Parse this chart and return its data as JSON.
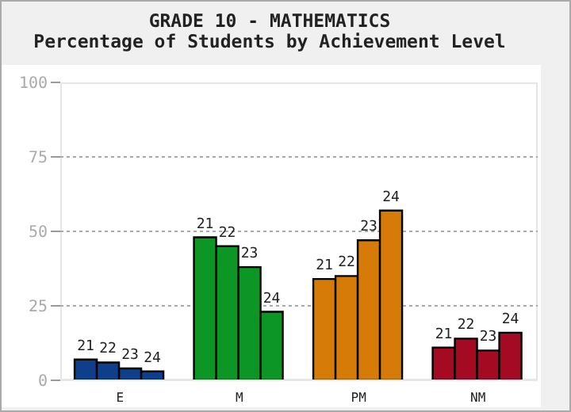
{
  "chart_data": {
    "type": "bar",
    "title": "GRADE 10 - MATHEMATICS",
    "subtitle": "Percentage of Students by Achievement Level",
    "categories": [
      "E",
      "M",
      "PM",
      "NM"
    ],
    "series": [
      {
        "name": "21",
        "colors": [
          "#0d3f8a",
          "#0c9626",
          "#d67b08",
          "#a50a23"
        ],
        "values": [
          7,
          48,
          34,
          11
        ]
      },
      {
        "name": "22",
        "colors": [
          "#0d3f8a",
          "#0c9626",
          "#d67b08",
          "#a50a23"
        ],
        "values": [
          6,
          45,
          35,
          14
        ]
      },
      {
        "name": "23",
        "colors": [
          "#0d3f8a",
          "#0c9626",
          "#d67b08",
          "#a50a23"
        ],
        "values": [
          4,
          38,
          47,
          10
        ]
      },
      {
        "name": "24",
        "colors": [
          "#0d3f8a",
          "#0c9626",
          "#d67b08",
          "#a50a23"
        ],
        "values": [
          3,
          23,
          57,
          16
        ]
      }
    ],
    "ylim": [
      0,
      100
    ],
    "yticks": [
      0,
      25,
      50,
      75,
      100
    ],
    "grid": "y"
  }
}
